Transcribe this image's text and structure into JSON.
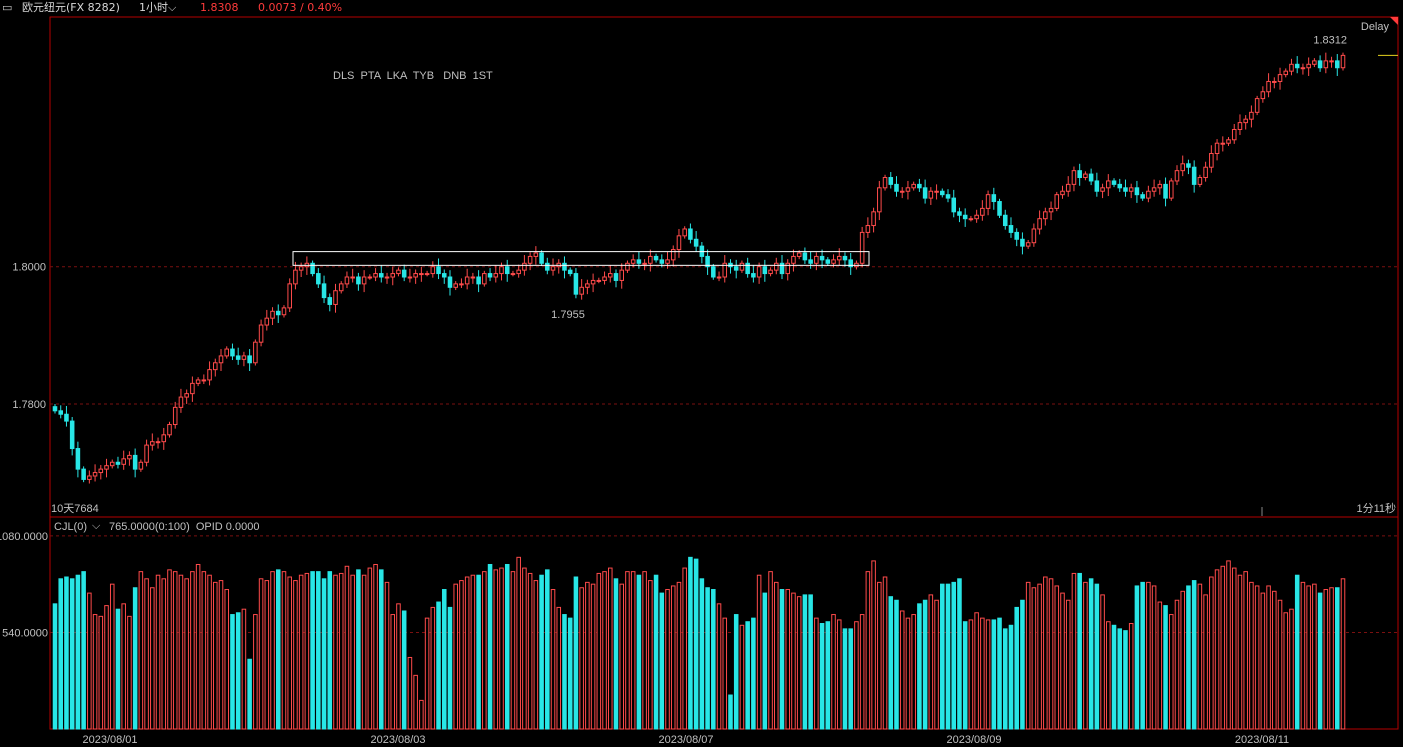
{
  "header": {
    "symbol": "欧元纽元(FX 8282)",
    "period": "1小时",
    "last_price": "1.8308",
    "change": "0.0073 / 0.40%"
  },
  "main_panel": {
    "delay_label": "Delay",
    "annotation_text": "DLS  PTA  LKA  TYB   DNB  1ST",
    "low_label": "10天7684",
    "min_label": "1.7955",
    "max_label": "1.8312",
    "countdown": "1分11秒",
    "y_ticks": [
      "1.8000",
      "1.7800"
    ]
  },
  "volume_panel": {
    "indicator": "CJL(0)",
    "readout": "765.0000(0:100)  OPID 0.0000",
    "y_ticks": [
      "1080.0000",
      "540.0000"
    ]
  },
  "x_axis": {
    "dates": [
      "2023/08/01",
      "2023/08/03",
      "2023/08/07",
      "2023/08/09",
      "2023/08/11"
    ]
  },
  "colors": {
    "up": "#ff4b4b",
    "down": "#28e6e6",
    "frame": "#b40000",
    "grid": "#7a1010",
    "header_red": "#ff3b3b",
    "annotation": "#ff2020",
    "label_yellow": "#e6d21e",
    "label_cyan": "#28e6e6",
    "rect_outline": "#ffffff"
  },
  "chart_data": {
    "type": "candlestick",
    "title": "",
    "xlabel": "",
    "ylabel": "",
    "ylim": [
      1.766,
      1.8345
    ],
    "volume_ylim": [
      0,
      1180
    ],
    "highlight_range": [
      1.8002,
      1.8022
    ],
    "closes": [
      1.779,
      1.7785,
      1.7775,
      1.7735,
      1.7705,
      1.769,
      1.7695,
      1.77,
      1.7705,
      1.771,
      1.7715,
      1.7712,
      1.772,
      1.7725,
      1.7705,
      1.7715,
      1.774,
      1.7745,
      1.7745,
      1.7755,
      1.777,
      1.7795,
      1.781,
      1.7815,
      1.783,
      1.7835,
      1.7835,
      1.785,
      1.786,
      1.787,
      1.788,
      1.787,
      1.7865,
      1.787,
      1.786,
      1.789,
      1.7915,
      1.7925,
      1.7935,
      1.793,
      1.794,
      1.7975,
      1.7995,
      1.8,
      1.8005,
      1.799,
      1.7975,
      1.7955,
      1.7945,
      1.7965,
      1.7975,
      1.7985,
      1.7985,
      1.7975,
      1.7985,
      1.7985,
      1.799,
      1.7985,
      1.7985,
      1.799,
      1.7995,
      1.7985,
      1.7985,
      1.799,
      1.799,
      1.799,
      1.8,
      1.799,
      1.7985,
      1.797,
      1.7975,
      1.7975,
      1.7985,
      1.7985,
      1.7975,
      1.799,
      1.7985,
      1.799,
      1.8,
      1.799,
      1.799,
      1.7995,
      1.8005,
      1.8015,
      1.802,
      1.8005,
      1.7995,
      1.8,
      1.8005,
      1.7995,
      1.799,
      1.796,
      1.797,
      1.7975,
      1.798,
      1.798,
      1.7985,
      1.799,
      1.798,
      1.7995,
      1.8005,
      1.801,
      1.8005,
      1.8005,
      1.8015,
      1.801,
      1.8005,
      1.801,
      1.8025,
      1.8045,
      1.8055,
      1.804,
      1.803,
      1.8015,
      1.8,
      1.7985,
      1.7985,
      1.8005,
      1.8,
      1.7995,
      1.8005,
      1.799,
      1.7985,
      1.8,
      1.799,
      1.7995,
      1.8005,
      1.799,
      1.8005,
      1.8015,
      1.802,
      1.801,
      1.8005,
      1.8015,
      1.801,
      1.8005,
      1.801,
      1.8015,
      1.801,
      1.8,
      1.8005,
      1.805,
      1.806,
      1.808,
      1.8115,
      1.813,
      1.812,
      1.811,
      1.811,
      1.8115,
      1.812,
      1.8115,
      1.81,
      1.811,
      1.811,
      1.8105,
      1.81,
      1.808,
      1.8075,
      1.807,
      1.807,
      1.8075,
      1.8085,
      1.8105,
      1.8095,
      1.8075,
      1.806,
      1.805,
      1.804,
      1.803,
      1.8035,
      1.8055,
      1.807,
      1.808,
      1.8085,
      1.8105,
      1.811,
      1.812,
      1.814,
      1.813,
      1.8135,
      1.8125,
      1.811,
      1.8115,
      1.8125,
      1.812,
      1.8115,
      1.811,
      1.8115,
      1.8105,
      1.81,
      1.811,
      1.8115,
      1.812,
      1.81,
      1.8125,
      1.814,
      1.815,
      1.8145,
      1.812,
      1.813,
      1.8145,
      1.8165,
      1.818,
      1.818,
      1.8185,
      1.82,
      1.821,
      1.8215,
      1.8225,
      1.8245,
      1.8255,
      1.827,
      1.827,
      1.828,
      1.8285,
      1.8295,
      1.829,
      1.829,
      1.8295,
      1.83,
      1.829,
      1.83,
      1.83,
      1.829,
      1.8308
    ],
    "volumes": [
      700,
      840,
      850,
      840,
      860,
      880,
      760,
      640,
      630,
      690,
      810,
      670,
      700,
      630,
      790,
      880,
      840,
      790,
      860,
      840,
      890,
      880,
      860,
      840,
      880,
      920,
      880,
      860,
      820,
      830,
      780,
      640,
      650,
      670,
      390,
      640,
      840,
      830,
      880,
      890,
      880,
      850,
      830,
      860,
      870,
      880,
      880,
      840,
      880,
      860,
      870,
      910,
      860,
      890,
      860,
      900,
      920,
      890,
      820,
      640,
      700,
      660,
      400,
      300,
      160,
      620,
      680,
      710,
      780,
      680,
      810,
      830,
      850,
      860,
      860,
      880,
      920,
      890,
      900,
      920,
      880,
      960,
      900,
      870,
      830,
      860,
      890,
      780,
      680,
      640,
      620,
      850,
      790,
      820,
      810,
      870,
      880,
      900,
      840,
      810,
      880,
      880,
      860,
      880,
      830,
      860,
      760,
      780,
      800,
      820,
      900,
      960,
      950,
      840,
      790,
      780,
      700,
      620,
      190,
      640,
      580,
      600,
      620,
      860,
      760,
      880,
      820,
      780,
      780,
      760,
      740,
      750,
      750,
      620,
      590,
      600,
      640,
      610,
      560,
      560,
      600,
      640,
      880,
      940,
      820,
      850,
      740,
      720,
      660,
      620,
      640,
      700,
      720,
      750,
      720,
      810,
      810,
      820,
      840,
      600,
      610,
      650,
      620,
      610,
      610,
      620,
      560,
      580,
      680,
      720,
      820,
      790,
      810,
      850,
      840,
      800,
      760,
      720,
      870,
      870,
      820,
      840,
      810,
      750,
      600,
      580,
      560,
      550,
      590,
      800,
      820,
      820,
      800,
      710,
      690,
      640,
      720,
      770,
      800,
      830,
      810,
      750,
      850,
      890,
      910,
      940,
      900,
      860,
      880,
      820,
      800,
      760,
      800,
      770,
      720,
      650,
      670,
      860,
      820,
      800,
      810,
      760,
      780,
      790,
      790,
      840
    ]
  }
}
